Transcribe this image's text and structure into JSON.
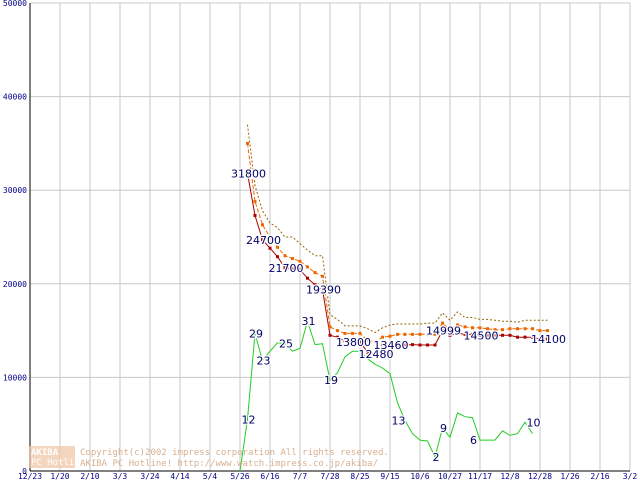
{
  "chart_data": {
    "type": "line",
    "ylim": [
      0,
      50000
    ],
    "yticks": [
      0,
      10000,
      20000,
      30000,
      40000,
      50000
    ],
    "grid": true,
    "x_tick_labels": [
      "12/23",
      "1/20",
      "2/10",
      "3/3",
      "3/24",
      "4/14",
      "5/4",
      "5/26",
      "6/16",
      "7/7",
      "7/28",
      "8/25",
      "9/15",
      "10/6",
      "10/27",
      "11/17",
      "12/8",
      "12/28",
      "1/26",
      "2/16",
      "3/2"
    ],
    "x_tick_index": [
      0,
      4,
      8,
      12,
      16,
      20,
      24,
      28,
      32,
      36,
      40,
      44,
      48,
      52,
      56,
      60,
      64,
      68,
      72,
      76,
      80
    ],
    "series": [
      {
        "name": "",
        "color": "#aa0000",
        "style": "solid",
        "markers": true,
        "start_index": 29,
        "values": [
          31800,
          27300,
          24700,
          23800,
          22900,
          21700,
          21600,
          21500,
          20600,
          19900,
          19390,
          14500,
          14300,
          13900,
          13800,
          13800,
          12700,
          12480,
          13500,
          13460,
          13460,
          13460,
          13500,
          13460,
          13460,
          13460,
          14999,
          14500,
          14700,
          14600,
          14600,
          14500,
          14500,
          14500,
          14500,
          14500,
          14300,
          14300,
          14300,
          14100,
          14100
        ]
      },
      {
        "name": "",
        "color": "#ee6600",
        "style": "dashed",
        "markers": true,
        "start_index": 29,
        "values": [
          35000,
          28800,
          26300,
          25000,
          23900,
          23000,
          22700,
          22400,
          21800,
          21200,
          20800,
          15400,
          15000,
          14700,
          14700,
          14700,
          14000,
          13800,
          14300,
          14400,
          14600,
          14600,
          14600,
          14600,
          14600,
          14600,
          15800,
          15100,
          15600,
          15400,
          15300,
          15300,
          15200,
          15100,
          15100,
          15200,
          15200,
          15200,
          15200,
          15000,
          15000
        ]
      },
      {
        "name": "",
        "color": "#996600",
        "style": "dotted",
        "markers": false,
        "start_index": 29,
        "values": [
          37000,
          30500,
          27800,
          26500,
          26000,
          25000,
          25000,
          24300,
          23600,
          23000,
          23000,
          16700,
          16200,
          15500,
          15500,
          15500,
          15200,
          14800,
          15300,
          15600,
          15700,
          15700,
          15700,
          15700,
          15800,
          15800,
          16900,
          16100,
          17000,
          16400,
          16400,
          16200,
          16200,
          16100,
          16000,
          16000,
          15900,
          16100,
          16100,
          16100,
          16100
        ]
      },
      {
        "name": "",
        "color": "#22cc22",
        "style": "solid",
        "markers": false,
        "start_index": 28,
        "values": [
          0,
          5500,
          14700,
          11800,
          12800,
          13700,
          13600,
          12800,
          13100,
          16000,
          13500,
          13600,
          9700,
          10500,
          12200,
          12800,
          12800,
          12000,
          11400,
          11000,
          10400,
          7300,
          5400,
          4000,
          3300,
          3200,
          1500,
          4600,
          3600,
          6200,
          5800,
          5700,
          3300,
          3300,
          3300,
          4300,
          3800,
          4000,
          5200,
          4000
        ]
      }
    ],
    "annotations": [
      {
        "text": "31800",
        "x": 29,
        "y": 31800,
        "color": "#000066"
      },
      {
        "text": "24700",
        "x": 31,
        "y": 24700,
        "color": "#000066"
      },
      {
        "text": "21700",
        "x": 34,
        "y": 21700,
        "color": "#000066"
      },
      {
        "text": "19390",
        "x": 39,
        "y": 19390,
        "color": "#000066"
      },
      {
        "text": "13800",
        "x": 43,
        "y": 13800,
        "color": "#000066"
      },
      {
        "text": "12480",
        "x": 46,
        "y": 12480,
        "color": "#000066"
      },
      {
        "text": "13460",
        "x": 48,
        "y": 13460,
        "color": "#000066"
      },
      {
        "text": "14999",
        "x": 55,
        "y": 14999,
        "color": "#000066"
      },
      {
        "text": "14500",
        "x": 60,
        "y": 14500,
        "color": "#000066"
      },
      {
        "text": "14100",
        "x": 69,
        "y": 14100,
        "color": "#000066"
      },
      {
        "text": "12",
        "x": 29,
        "y": 5500,
        "color": "#000066"
      },
      {
        "text": "29",
        "x": 30,
        "y": 14700,
        "color": "#000066"
      },
      {
        "text": "23",
        "x": 31,
        "y": 11800,
        "color": "#000066"
      },
      {
        "text": "25",
        "x": 34,
        "y": 13600,
        "color": "#000066"
      },
      {
        "text": "31",
        "x": 37,
        "y": 16000,
        "color": "#000066"
      },
      {
        "text": "19",
        "x": 40,
        "y": 9700,
        "color": "#000066"
      },
      {
        "text": "13",
        "x": 49,
        "y": 5400,
        "color": "#000066"
      },
      {
        "text": "9",
        "x": 55,
        "y": 4600,
        "color": "#000066"
      },
      {
        "text": "6",
        "x": 59,
        "y": 3300,
        "color": "#000066"
      },
      {
        "text": "10",
        "x": 67,
        "y": 5200,
        "color": "#000066"
      },
      {
        "text": "2",
        "x": 54,
        "y": 1500,
        "color": "#000066"
      }
    ]
  },
  "watermark": {
    "logo_top": "AKIBA",
    "logo_bottom": "PC Hotline!",
    "copyright": "Copyright(c)2002 impress corporation All rights reserved.",
    "site": "AKIBA PC Hotline!  http://www.watch.impress.co.jp/akiba/"
  },
  "colors": {
    "grid": "#c8c8c8",
    "axis": "#000000",
    "tick_text": "#000088",
    "watermark": "#cfa080"
  }
}
